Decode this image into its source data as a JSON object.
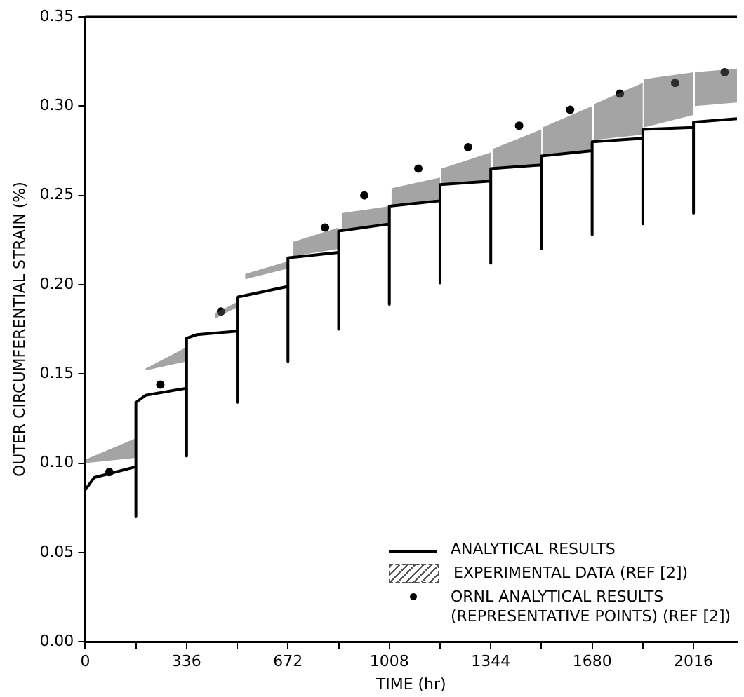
{
  "chart_data": {
    "type": "line",
    "xlabel": "TIME (hr)",
    "ylabel": "OUTER CIRCUMFERENTIAL STRAIN (%)",
    "xlim": [
      0,
      2160
    ],
    "ylim": [
      0,
      0.35
    ],
    "xticks": [
      0,
      {
        "value": 168,
        "label": null
      },
      336,
      {
        "value": 504,
        "label": null
      },
      672,
      {
        "value": 840,
        "label": null
      },
      1008,
      {
        "value": 1176,
        "label": null
      },
      1344,
      {
        "value": 1512,
        "label": null
      },
      1680,
      {
        "value": 1848,
        "label": null
      },
      2016
    ],
    "yticks": [
      {
        "value": 0,
        "label": "0.00"
      },
      {
        "value": 0.05,
        "label": "0.05"
      },
      {
        "value": 0.1,
        "label": "0.10"
      },
      {
        "value": 0.15,
        "label": "0.15"
      },
      {
        "value": 0.2,
        "label": "0.20"
      },
      {
        "value": 0.25,
        "label": "0.25"
      },
      {
        "value": 0.3,
        "label": "0.30"
      },
      {
        "value": 0.35,
        "label": "0.35"
      }
    ],
    "grid": false,
    "legend": "bottom right",
    "marker": "none",
    "series": [
      {
        "name": "ANALYTICAL RESULTS",
        "type": "line",
        "color": "#000000",
        "line_style": "solid",
        "x": [
          0,
          30,
          168,
          168,
          168,
          200,
          336,
          336,
          336,
          370,
          504,
          504,
          504,
          672,
          672,
          672,
          840,
          840,
          840,
          1008,
          1008,
          1008,
          1176,
          1176,
          1176,
          1344,
          1344,
          1344,
          1512,
          1512,
          1512,
          1680,
          1680,
          1680,
          1848,
          1848,
          1848,
          2016,
          2016,
          2016,
          2160
        ],
        "values": [
          0.085,
          0.092,
          0.098,
          0.07,
          0.134,
          0.138,
          0.142,
          0.104,
          0.17,
          0.172,
          0.174,
          0.134,
          0.193,
          0.199,
          0.157,
          0.215,
          0.218,
          0.175,
          0.23,
          0.234,
          0.189,
          0.244,
          0.247,
          0.201,
          0.256,
          0.258,
          0.212,
          0.265,
          0.267,
          0.22,
          0.272,
          0.275,
          0.228,
          0.28,
          0.282,
          0.234,
          0.287,
          0.288,
          0.24,
          0.291,
          0.293
        ]
      },
      {
        "name": "EXPERIMENTAL DATA (REF [2])",
        "color": "#555555",
        "line_style": "dashed",
        "x": [
          0,
          168,
          180,
          200,
          336,
          345,
          430,
          500,
          510,
          530,
          672,
          680,
          690,
          840,
          845,
          850,
          1008,
          1012,
          1015,
          1176,
          1178,
          1180,
          1344,
          1346,
          1350,
          1512,
          1513,
          1515,
          1680,
          1682,
          1685,
          1848,
          1849,
          1850,
          2016,
          2018,
          2020,
          2160
        ],
        "values": [
          null,
          null,
          null,
          null,
          null,
          null,
          null,
          null,
          null,
          null,
          null,
          null,
          null,
          null,
          null,
          null,
          null,
          null,
          null,
          null,
          null,
          null,
          null,
          null,
          null,
          null,
          null,
          null,
          null,
          null,
          null,
          null,
          null,
          null,
          null,
          null,
          null,
          null
        ],
        "upper": [
          0.102,
          0.114,
          null,
          0.153,
          0.165,
          null,
          0.184,
          0.19,
          null,
          0.206,
          0.213,
          null,
          0.224,
          0.232,
          null,
          0.24,
          0.244,
          null,
          0.254,
          0.26,
          null,
          0.265,
          0.274,
          null,
          0.276,
          0.287,
          null,
          0.288,
          0.3,
          null,
          0.301,
          0.313,
          null,
          0.315,
          0.319,
          null,
          0.319,
          0.321
        ],
        "lower": [
          0.1,
          0.103,
          null,
          0.152,
          0.157,
          null,
          0.181,
          0.187,
          null,
          0.203,
          0.209,
          null,
          0.216,
          0.22,
          null,
          0.231,
          0.233,
          null,
          0.244,
          0.248,
          null,
          0.256,
          0.258,
          null,
          0.265,
          0.267,
          null,
          0.272,
          0.275,
          null,
          0.281,
          0.284,
          null,
          0.288,
          0.295,
          null,
          0.3,
          0.302
        ]
      },
      {
        "name": "ORNL ANALYTICAL RESULTS\n(REPRESENTATIVE POINTS) (REF [2])",
        "type": "scatter",
        "color": "#000000",
        "marker": "circle",
        "x": [
          80,
          249,
          450,
          795,
          925,
          1104,
          1269,
          1438,
          1607,
          1772,
          1955,
          2119
        ],
        "values": [
          0.095,
          0.144,
          0.185,
          0.232,
          0.25,
          0.265,
          0.277,
          0.289,
          0.298,
          0.307,
          0.313,
          0.319
        ]
      }
    ]
  }
}
